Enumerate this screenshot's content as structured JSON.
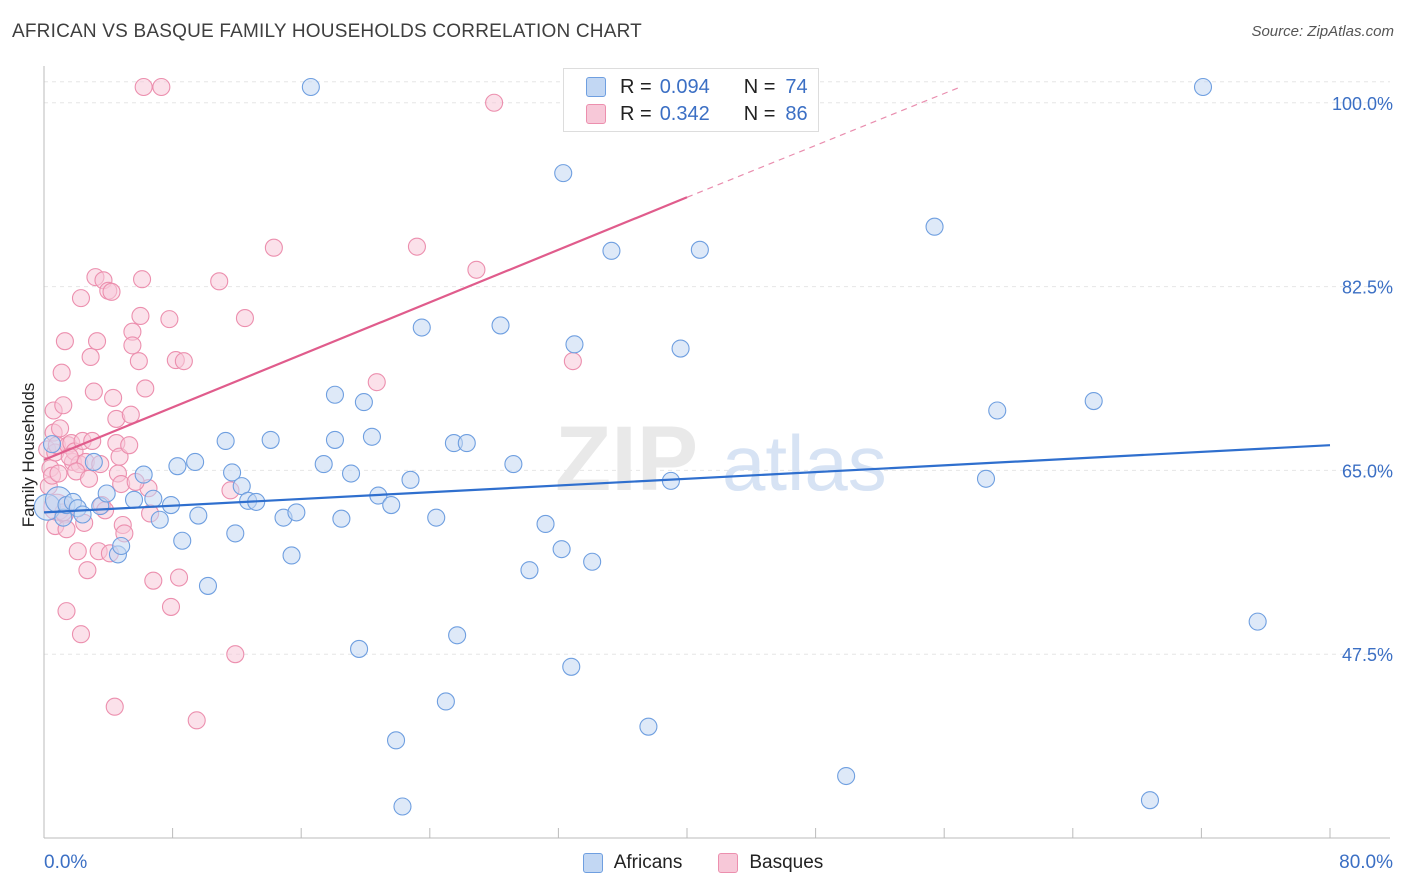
{
  "title": "AFRICAN VS BASQUE FAMILY HOUSEHOLDS CORRELATION CHART",
  "source": "Source: ZipAtlas.com",
  "watermark": {
    "zip": "ZIP",
    "atlas": "atlas"
  },
  "legend": {
    "rows": [
      {
        "r_label": "R =",
        "r_value": "0.094",
        "n_label": "N =",
        "n_value": "74"
      },
      {
        "r_label": "R =",
        "r_value": "0.342",
        "n_label": "N =",
        "n_value": "86"
      }
    ]
  },
  "colors": {
    "africans": "#6f9fe0",
    "africans_fill": "#c2d7f3",
    "africans_line": "#2f6fce",
    "basques": "#ec8fae",
    "basques_fill": "#f7c8d8",
    "basques_line": "#e05c8c",
    "axis_value": "#3b6fc4",
    "grid": "#e6e6e6"
  },
  "chart_data": {
    "type": "scatter",
    "title": "AFRICAN VS BASQUE FAMILY HOUSEHOLDS CORRELATION CHART",
    "xlabel": "",
    "ylabel": "Family Households",
    "xlim": [
      0,
      80
    ],
    "ylim": [
      30,
      103.5
    ],
    "x_tick_labels": [
      "0.0%",
      "80.0%"
    ],
    "y_ticks": [
      47.5,
      65.0,
      82.5,
      100.0
    ],
    "y_tick_labels": [
      "47.5%",
      "65.0%",
      "82.5%",
      "100.0%"
    ],
    "grid": "horizontal dashed",
    "legend_position": "bottom-center",
    "series": [
      {
        "name": "Africans",
        "r": 0.094,
        "n": 74,
        "trend": {
          "x0": 0,
          "y0": 61.0,
          "x1": 80,
          "y1": 67.4
        },
        "points": [
          [
            0.2,
            61.5
          ],
          [
            0.5,
            67.5
          ],
          [
            0.9,
            62.2
          ],
          [
            1.2,
            60.5
          ],
          [
            1.4,
            61.7
          ],
          [
            1.8,
            62.0
          ],
          [
            2.1,
            61.4
          ],
          [
            2.4,
            60.8
          ],
          [
            3.1,
            65.8
          ],
          [
            3.5,
            61.6
          ],
          [
            3.9,
            62.8
          ],
          [
            4.6,
            57.0
          ],
          [
            4.8,
            57.8
          ],
          [
            5.6,
            62.2
          ],
          [
            6.2,
            64.6
          ],
          [
            6.8,
            62.3
          ],
          [
            7.2,
            60.3
          ],
          [
            7.9,
            61.7
          ],
          [
            8.3,
            65.4
          ],
          [
            8.6,
            58.3
          ],
          [
            9.4,
            65.8
          ],
          [
            9.6,
            60.7
          ],
          [
            10.2,
            54.0
          ],
          [
            11.3,
            67.8
          ],
          [
            11.7,
            64.8
          ],
          [
            11.9,
            59.0
          ],
          [
            12.3,
            63.5
          ],
          [
            12.7,
            62.1
          ],
          [
            13.2,
            62.0
          ],
          [
            14.1,
            67.9
          ],
          [
            14.9,
            60.5
          ],
          [
            15.4,
            56.9
          ],
          [
            15.7,
            61.0
          ],
          [
            16.6,
            101.5
          ],
          [
            17.4,
            65.6
          ],
          [
            18.1,
            67.9
          ],
          [
            18.1,
            72.2
          ],
          [
            18.5,
            60.4
          ],
          [
            19.1,
            64.7
          ],
          [
            19.6,
            48.0
          ],
          [
            19.9,
            71.5
          ],
          [
            20.4,
            68.2
          ],
          [
            20.8,
            62.6
          ],
          [
            21.6,
            61.7
          ],
          [
            21.9,
            39.3
          ],
          [
            22.3,
            33.0
          ],
          [
            22.8,
            64.1
          ],
          [
            23.5,
            78.6
          ],
          [
            24.4,
            60.5
          ],
          [
            25.0,
            43.0
          ],
          [
            25.5,
            67.6
          ],
          [
            25.7,
            49.3
          ],
          [
            26.3,
            67.6
          ],
          [
            28.4,
            78.8
          ],
          [
            29.2,
            65.6
          ],
          [
            30.2,
            55.5
          ],
          [
            31.2,
            59.9
          ],
          [
            32.2,
            57.5
          ],
          [
            32.3,
            93.3
          ],
          [
            32.8,
            46.3
          ],
          [
            33.0,
            77.0
          ],
          [
            34.1,
            56.3
          ],
          [
            35.3,
            85.9
          ],
          [
            37.6,
            40.6
          ],
          [
            39.0,
            64.0
          ],
          [
            39.6,
            76.6
          ],
          [
            40.8,
            86.0
          ],
          [
            49.9,
            35.9
          ],
          [
            55.4,
            88.2
          ],
          [
            58.6,
            64.2
          ],
          [
            59.3,
            70.7
          ],
          [
            65.3,
            71.6
          ],
          [
            68.8,
            33.6
          ],
          [
            72.1,
            101.5
          ],
          [
            75.5,
            50.6
          ]
        ]
      },
      {
        "name": "Basques",
        "r": 0.342,
        "n": 86,
        "trend": {
          "x0": 0,
          "y0": 66.0,
          "x1": 40,
          "y1": 91.0,
          "dashed_to": {
            "x": 57,
            "y": 101.5
          }
        },
        "points": [
          [
            0.2,
            67.0
          ],
          [
            0.3,
            63.5
          ],
          [
            0.4,
            65.2
          ],
          [
            0.5,
            64.5
          ],
          [
            0.6,
            70.7
          ],
          [
            0.6,
            68.6
          ],
          [
            0.7,
            66.7
          ],
          [
            0.7,
            59.7
          ],
          [
            0.8,
            67.4
          ],
          [
            0.9,
            64.7
          ],
          [
            1.0,
            69.0
          ],
          [
            1.1,
            74.3
          ],
          [
            1.2,
            71.2
          ],
          [
            1.3,
            77.3
          ],
          [
            1.3,
            60.8
          ],
          [
            1.4,
            59.4
          ],
          [
            1.4,
            51.6
          ],
          [
            1.5,
            67.4
          ],
          [
            1.7,
            67.6
          ],
          [
            1.8,
            65.8
          ],
          [
            1.9,
            66.8
          ],
          [
            2.1,
            57.3
          ],
          [
            2.2,
            65.6
          ],
          [
            2.3,
            81.4
          ],
          [
            2.3,
            49.4
          ],
          [
            2.4,
            67.8
          ],
          [
            2.5,
            60.0
          ],
          [
            2.6,
            65.8
          ],
          [
            2.7,
            55.5
          ],
          [
            2.9,
            75.8
          ],
          [
            3.0,
            67.8
          ],
          [
            3.1,
            72.5
          ],
          [
            3.2,
            83.4
          ],
          [
            3.3,
            77.3
          ],
          [
            3.4,
            57.3
          ],
          [
            3.5,
            65.6
          ],
          [
            3.6,
            61.7
          ],
          [
            3.7,
            83.1
          ],
          [
            4.0,
            82.1
          ],
          [
            4.1,
            57.1
          ],
          [
            4.2,
            82.0
          ],
          [
            4.3,
            71.9
          ],
          [
            4.4,
            42.5
          ],
          [
            4.5,
            69.9
          ],
          [
            4.5,
            67.6
          ],
          [
            4.6,
            64.7
          ],
          [
            4.7,
            66.3
          ],
          [
            4.8,
            63.7
          ],
          [
            4.9,
            59.8
          ],
          [
            5.0,
            59.0
          ],
          [
            5.3,
            67.4
          ],
          [
            5.4,
            70.3
          ],
          [
            5.5,
            78.2
          ],
          [
            5.5,
            76.9
          ],
          [
            5.9,
            75.4
          ],
          [
            6.0,
            79.7
          ],
          [
            6.1,
            83.2
          ],
          [
            6.2,
            101.5
          ],
          [
            6.3,
            72.8
          ],
          [
            6.5,
            63.3
          ],
          [
            6.8,
            54.5
          ],
          [
            7.8,
            79.4
          ],
          [
            7.9,
            52.0
          ],
          [
            8.2,
            75.5
          ],
          [
            8.4,
            54.8
          ],
          [
            8.7,
            75.4
          ],
          [
            9.5,
            41.2
          ],
          [
            10.9,
            83.0
          ],
          [
            11.6,
            63.1
          ],
          [
            11.9,
            47.5
          ],
          [
            12.5,
            79.5
          ],
          [
            14.3,
            86.2
          ],
          [
            20.7,
            73.4
          ],
          [
            23.2,
            86.3
          ],
          [
            26.9,
            84.1
          ],
          [
            28.0,
            100.0
          ],
          [
            32.9,
            75.4
          ],
          [
            7.3,
            101.5
          ],
          [
            1.6,
            66.3
          ],
          [
            2.0,
            64.9
          ],
          [
            0.8,
            61.5
          ],
          [
            3.8,
            61.2
          ],
          [
            5.7,
            63.9
          ],
          [
            1.2,
            61.0
          ],
          [
            2.8,
            64.2
          ],
          [
            6.6,
            60.9
          ]
        ]
      }
    ]
  }
}
